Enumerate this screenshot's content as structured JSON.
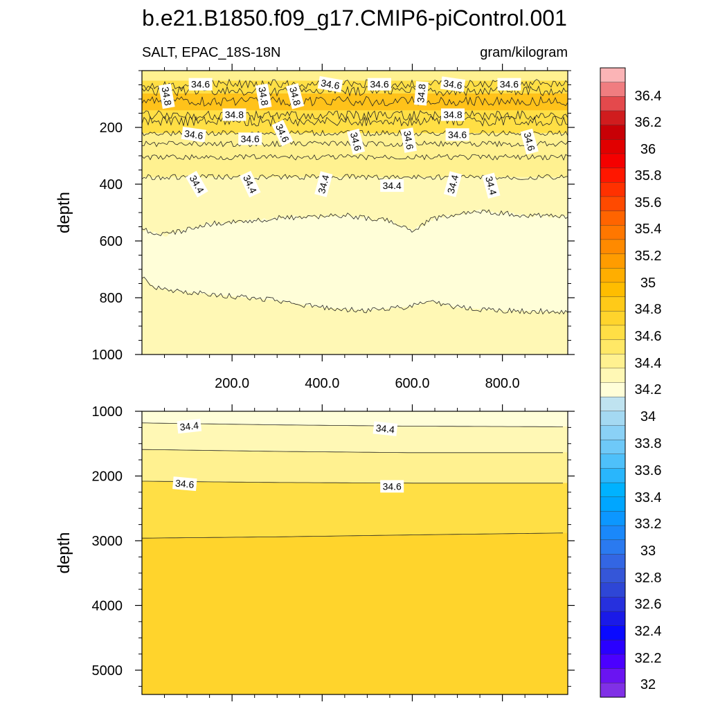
{
  "title": "b.e21.B1850.f09_g17.CMIP6-piControl.001",
  "left_string": "SALT, EPAC_18S-18N",
  "right_string": "gram/kilogram",
  "chart_data": [
    {
      "type": "contour",
      "name": "upper",
      "ylabel": "depth",
      "xlim": [
        0,
        945
      ],
      "ylim": [
        0,
        1000
      ],
      "y_reversed": true,
      "x_ticks": [
        200,
        400,
        600,
        800
      ],
      "x_tick_labels": [
        "200.0",
        "400.0",
        "600.0",
        "800.0"
      ],
      "y_ticks": [
        200,
        400,
        600,
        800,
        1000
      ],
      "y_tick_labels": [
        "200",
        "400",
        "600",
        "800",
        "1000"
      ],
      "contour_lines": [
        {
          "level": 34.6,
          "x": [
            0,
            945
          ],
          "depth": [
            48,
            48
          ]
        },
        {
          "level": 34.8,
          "x": [
            0,
            945
          ],
          "depth": [
            72,
            72
          ]
        },
        {
          "level": 34.8,
          "x": [
            0,
            945
          ],
          "depth": [
            108,
            108
          ]
        },
        {
          "level": 34.8,
          "x": [
            0,
            945
          ],
          "depth": [
            158,
            158
          ]
        },
        {
          "level": 34.8,
          "x": [
            0,
            945
          ],
          "depth": [
            178,
            178
          ]
        },
        {
          "level": 34.6,
          "x": [
            0,
            945
          ],
          "depth": [
            220,
            220
          ]
        },
        {
          "level": 34.6,
          "x": [
            0,
            945
          ],
          "depth": [
            258,
            258
          ]
        },
        {
          "level": 34.6,
          "x": [
            0,
            945
          ],
          "depth": [
            305,
            305
          ]
        },
        {
          "level": 34.4,
          "x": [
            0,
            945
          ],
          "depth": [
            375,
            375
          ]
        },
        {
          "level": 34.4,
          "x": [
            0,
            50,
            150,
            300,
            450,
            550,
            600,
            650,
            750,
            850,
            945
          ],
          "depth": [
            560,
            580,
            540,
            520,
            510,
            530,
            565,
            520,
            495,
            510,
            515
          ]
        },
        {
          "level": 34.2,
          "x": [
            0,
            30,
            100,
            200,
            300,
            400,
            500,
            600,
            640,
            700,
            800,
            945
          ],
          "depth": [
            725,
            765,
            780,
            795,
            810,
            835,
            845,
            830,
            810,
            835,
            845,
            850
          ]
        }
      ],
      "line_labels": [
        {
          "text": "34.8",
          "x": 55,
          "depth": 90,
          "angle": 80
        },
        {
          "text": "34.6",
          "x": 130,
          "depth": 48,
          "angle": 0
        },
        {
          "text": "34.8",
          "x": 270,
          "depth": 90,
          "angle": 80
        },
        {
          "text": "34.8",
          "x": 340,
          "depth": 90,
          "angle": 75
        },
        {
          "text": "34.6",
          "x": 418,
          "depth": 48,
          "angle": 10
        },
        {
          "text": "34.6",
          "x": 527,
          "depth": 48,
          "angle": 0
        },
        {
          "text": "34.8",
          "x": 620,
          "depth": 80,
          "angle": -85
        },
        {
          "text": "34.6",
          "x": 690,
          "depth": 48,
          "angle": 8
        },
        {
          "text": "34.6",
          "x": 815,
          "depth": 48,
          "angle": 0
        },
        {
          "text": "34.8",
          "x": 205,
          "depth": 155,
          "angle": 0
        },
        {
          "text": "34.8",
          "x": 690,
          "depth": 155,
          "angle": 0
        },
        {
          "text": "34.6",
          "x": 115,
          "depth": 225,
          "angle": 8
        },
        {
          "text": "34.6",
          "x": 240,
          "depth": 240,
          "angle": 0
        },
        {
          "text": "34.6",
          "x": 312,
          "depth": 220,
          "angle": 65
        },
        {
          "text": "34.6",
          "x": 475,
          "depth": 250,
          "angle": 75
        },
        {
          "text": "34.6",
          "x": 592,
          "depth": 245,
          "angle": 80
        },
        {
          "text": "34.6",
          "x": 700,
          "depth": 225,
          "angle": 0
        },
        {
          "text": "34.6",
          "x": 860,
          "depth": 250,
          "angle": 75
        },
        {
          "text": "34.4",
          "x": 122,
          "depth": 400,
          "angle": 60
        },
        {
          "text": "34.4",
          "x": 240,
          "depth": 400,
          "angle": 65
        },
        {
          "text": "34.4",
          "x": 403,
          "depth": 400,
          "angle": -75
        },
        {
          "text": "34.4",
          "x": 555,
          "depth": 405,
          "angle": 0
        },
        {
          "text": "34.4",
          "x": 690,
          "depth": 400,
          "angle": -75
        },
        {
          "text": "34.4",
          "x": 775,
          "depth": 405,
          "angle": 75
        }
      ]
    },
    {
      "type": "contour",
      "name": "lower",
      "ylabel": "depth",
      "xlim": [
        0,
        945
      ],
      "ylim": [
        1000,
        5375
      ],
      "y_reversed": true,
      "y_ticks": [
        1000,
        2000,
        3000,
        4000,
        5000
      ],
      "y_tick_labels": [
        "1000",
        "2000",
        "3000",
        "4000",
        "5000"
      ],
      "contour_lines": [
        {
          "level": 34.4,
          "x": [
            0,
            300,
            600,
            945
          ],
          "depth": [
            1180,
            1210,
            1230,
            1240
          ]
        },
        {
          "level": 34.6,
          "x": [
            0,
            300,
            600,
            945
          ],
          "depth": [
            1590,
            1620,
            1640,
            1640
          ]
        },
        {
          "level": 34.6,
          "x": [
            0,
            300,
            600,
            945
          ],
          "depth": [
            2080,
            2100,
            2110,
            2110
          ]
        },
        {
          "level": 34.8,
          "x": [
            0,
            300,
            600,
            945
          ],
          "depth": [
            2960,
            2940,
            2910,
            2880
          ]
        }
      ],
      "line_labels": [
        {
          "text": "34.4",
          "x": 105,
          "depth": 1230,
          "angle": -6
        },
        {
          "text": "34.4",
          "x": 540,
          "depth": 1270,
          "angle": 6
        },
        {
          "text": "34.6",
          "x": 95,
          "depth": 2120,
          "angle": 5
        },
        {
          "text": "34.6",
          "x": 555,
          "depth": 2160,
          "angle": 0
        }
      ]
    }
  ],
  "colorbar": {
    "labels": [
      "36.4",
      "36.2",
      "36",
      "35.8",
      "35.6",
      "35.4",
      "35.2",
      "35",
      "34.8",
      "34.6",
      "34.4",
      "34.2",
      "34",
      "33.8",
      "33.6",
      "33.4",
      "33.2",
      "33",
      "32.8",
      "32.6",
      "32.4",
      "32.2",
      "32"
    ],
    "colors": [
      "#fbb4b6",
      "#f07d80",
      "#e4494c",
      "#d01c1e",
      "#c80006",
      "#e10000",
      "#f50000",
      "#ff1700",
      "#ff3100",
      "#ff4a00",
      "#ff6400",
      "#ff7700",
      "#ff8a00",
      "#ff9c00",
      "#ffae00",
      "#ffbd00",
      "#ffca18",
      "#ffd42c",
      "#ffdf45",
      "#ffe866",
      "#fff190",
      "#fff8b5",
      "#fffed8",
      "#bfe3f0",
      "#a4d9f2",
      "#8ad1f6",
      "#6ec9f8",
      "#4ec0fa",
      "#29b6fc",
      "#00b2ff",
      "#00a6ff",
      "#0c97ff",
      "#1a88fa",
      "#2a7af0",
      "#3366e3",
      "#3556d8",
      "#2e46d6",
      "#2630de",
      "#1a1ae8",
      "#0a0aff",
      "#2a00ff",
      "#4b00ff",
      "#6a14f2",
      "#8030e6"
    ]
  }
}
